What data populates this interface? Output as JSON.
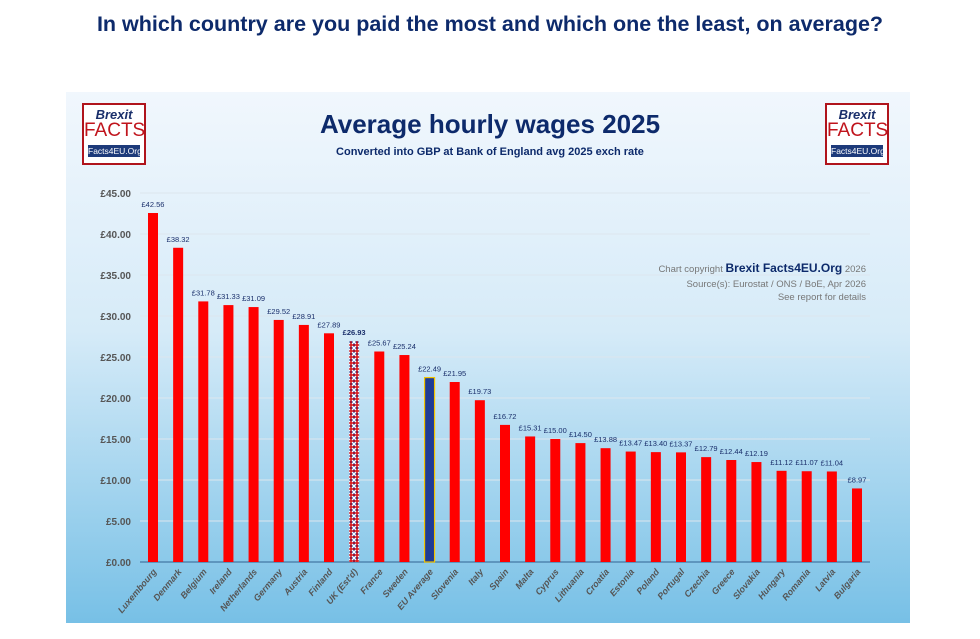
{
  "headline": "In which country are you paid the most and which one the least, on average?",
  "logo": {
    "line1": "Brexit",
    "line2": "FACTS",
    "line3": "Facts4EU.Org"
  },
  "chart_data": {
    "type": "bar",
    "title": "Average hourly wages 2025",
    "subtitle": "Converted into GBP at Bank of England avg 2025 exch rate",
    "copyright": {
      "prefix": "Chart copyright",
      "brand": "Brexit Facts4EU.Org",
      "year": "2026"
    },
    "source": "Source(s): Eurostat /  ONS / BoE, Apr 2026",
    "note": "See report for details",
    "ylim": [
      0,
      45
    ],
    "yticks": [
      "£0.00",
      "£5.00",
      "£10.00",
      "£15.00",
      "£20.00",
      "£25.00",
      "£30.00",
      "£35.00",
      "£40.00",
      "£45.00"
    ],
    "grid": true,
    "categories": [
      "Luxembourg",
      "Denmark",
      "Belgium",
      "Ireland",
      "Netherlands",
      "Germany",
      "Austria",
      "Finland",
      "UK (Est'd)",
      "France",
      "Sweden",
      "EU Average",
      "Slovenia",
      "Italy",
      "Spain",
      "Malta",
      "Cyprus",
      "Lithuania",
      "Croatia",
      "Estonia",
      "Poland",
      "Portugal",
      "Czechia",
      "Greece",
      "Slovakia",
      "Hungary",
      "Romania",
      "Latvia",
      "Bulgaria"
    ],
    "values": [
      42.56,
      38.32,
      31.78,
      31.33,
      31.09,
      29.52,
      28.91,
      27.89,
      26.93,
      25.67,
      25.24,
      22.49,
      21.95,
      19.73,
      16.72,
      15.31,
      15.0,
      14.5,
      13.88,
      13.47,
      13.4,
      13.37,
      12.79,
      12.44,
      12.19,
      11.12,
      11.07,
      11.04,
      8.97
    ],
    "labels": [
      "£42.56",
      "£38.32",
      "£31.78",
      "£31.33",
      "£31.09",
      "£29.52",
      "£28.91",
      "£27.89",
      "£26.93",
      "£25.67",
      "£25.24",
      "£22.49",
      "£21.95",
      "£19.73",
      "£16.72",
      "£15.31",
      "£15.00",
      "£14.50",
      "£13.88",
      "£13.47",
      "£13.40",
      "£13.37",
      "£12.79",
      "£12.44",
      "£12.19",
      "£11.12",
      "£11.07",
      "£11.04",
      "£8.97"
    ],
    "colors": {
      "bar": "#ff0000",
      "uk": "union-flag-pattern",
      "eu": "#1f3c95",
      "eu_border": "#f3c300",
      "text": "#1a2f6b",
      "axis_text": "#555555"
    }
  }
}
